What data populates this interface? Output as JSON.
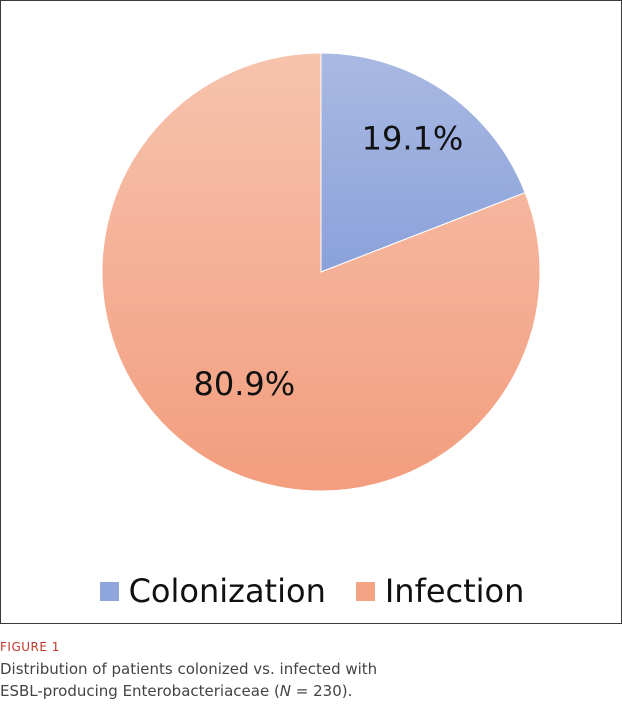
{
  "chart_data": {
    "type": "pie",
    "categories": [
      "Colonization",
      "Infection"
    ],
    "values": [
      19.1,
      80.9
    ],
    "value_labels": [
      "19.1%",
      "80.9%"
    ],
    "colors": [
      "#8fa6dc",
      "#f4a384"
    ],
    "legend_position": "bottom"
  },
  "caption": {
    "figure_number": "FIGURE 1",
    "text_before": "Distribution of patients colonized vs. infected with ESBL-producing Enterobacteriaceae (",
    "n_symbol": "N",
    "text_after": " = 230)."
  }
}
